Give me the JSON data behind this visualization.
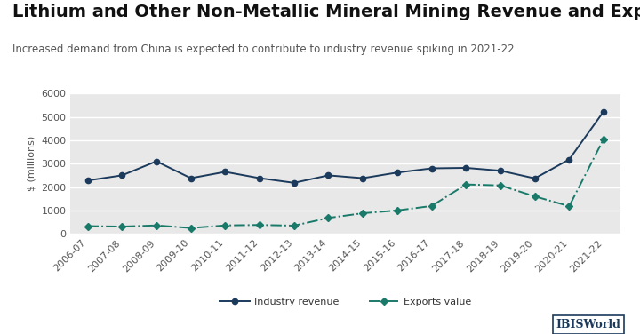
{
  "title": "Lithium and Other Non-Metallic Mineral Mining Revenue and Exports",
  "subtitle": "Increased demand from China is expected to contribute to industry revenue spiking in 2021-22",
  "ylabel": "$ (millions)",
  "fig_bg_color": "#ffffff",
  "plot_bg_color": "#e8e8e8",
  "categories": [
    "2006-07",
    "2007-08",
    "2008-09",
    "2009-10",
    "2010-11",
    "2011-12",
    "2012-13",
    "2013-14",
    "2014-15",
    "2015-16",
    "2016-17",
    "2017-18",
    "2018-19",
    "2019-20",
    "2020-21",
    "2021-22"
  ],
  "industry_revenue": [
    2280,
    2500,
    3100,
    2380,
    2650,
    2380,
    2180,
    2500,
    2380,
    2620,
    2800,
    2820,
    2700,
    2370,
    3180,
    5230
  ],
  "exports_value": [
    330,
    310,
    360,
    250,
    360,
    380,
    350,
    680,
    880,
    1000,
    1190,
    2110,
    2070,
    1600,
    1180,
    4050
  ],
  "revenue_color": "#1b3a5c",
  "exports_color": "#1a7a6a",
  "ylim": [
    0,
    6000
  ],
  "yticks": [
    0,
    1000,
    2000,
    3000,
    4000,
    5000,
    6000
  ],
  "title_fontsize": 14,
  "subtitle_fontsize": 8.5,
  "label_fontsize": 8,
  "tick_fontsize": 8,
  "legend_fontsize": 8
}
